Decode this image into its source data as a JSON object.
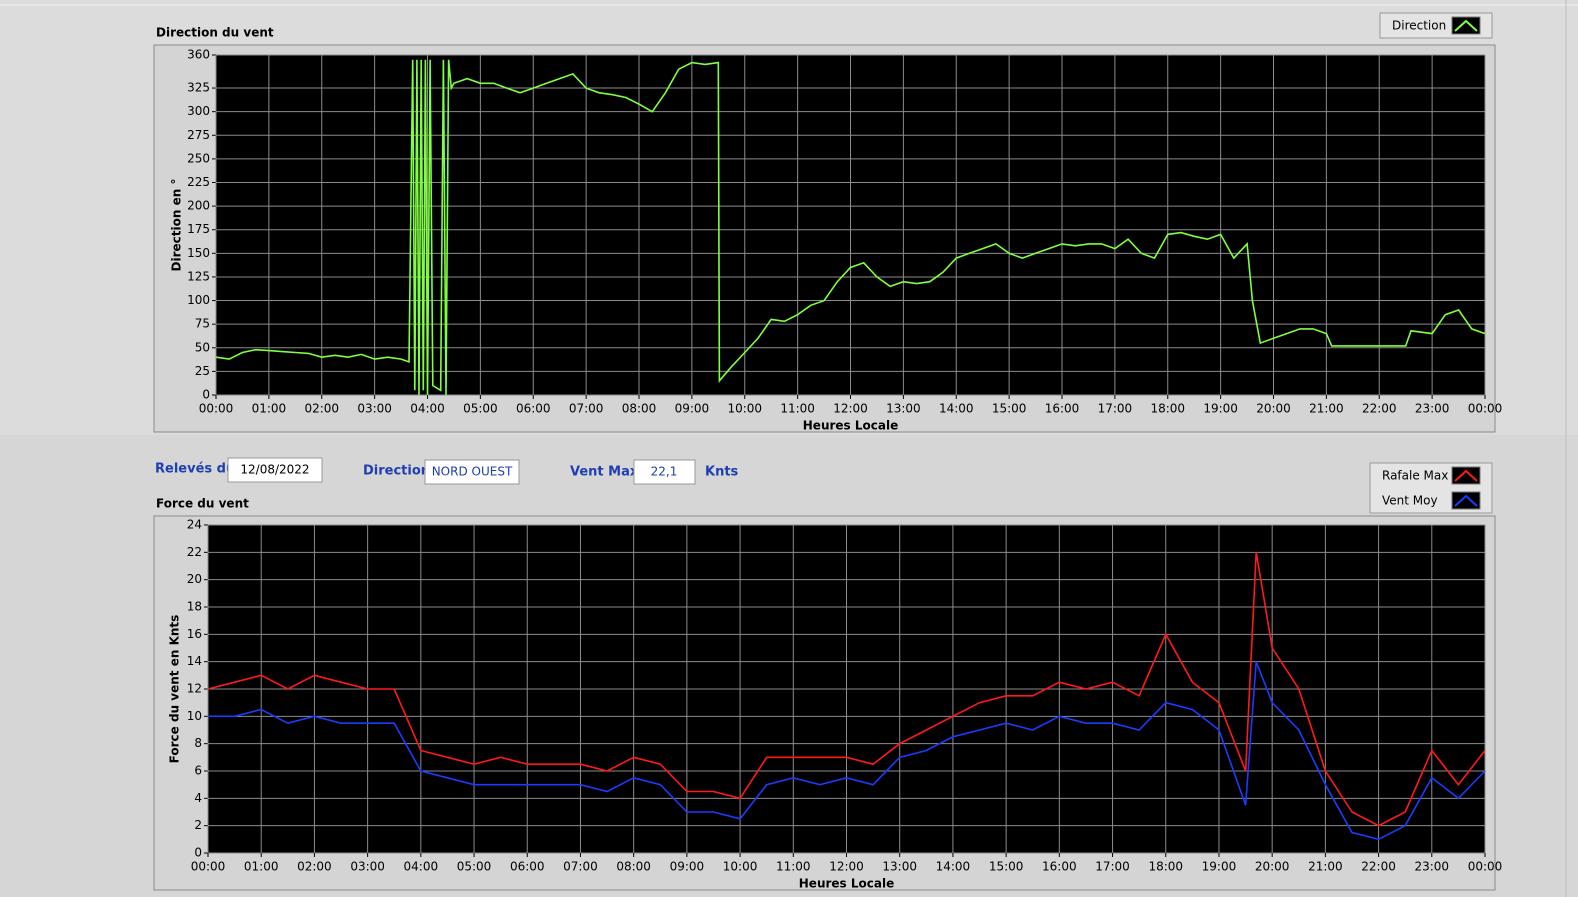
{
  "chart_data": [
    {
      "type": "line",
      "title": "Direction du vent",
      "ylabel": "Direction en °",
      "xlabel": "Heures Locale",
      "x": [
        0,
        0.25,
        0.5,
        0.75,
        1,
        1.25,
        1.5,
        1.75,
        2,
        2.25,
        2.5,
        2.75,
        3,
        3.25,
        3.5,
        3.65,
        3.72,
        3.76,
        3.8,
        3.84,
        3.88,
        3.92,
        3.96,
        4,
        4.05,
        4.1,
        4.25,
        4.3,
        4.35,
        4.4,
        4.45,
        4.5,
        4.75,
        5,
        5.25,
        5.5,
        5.75,
        6,
        6.25,
        6.5,
        6.75,
        7,
        7.25,
        7.5,
        7.75,
        8,
        8.25,
        8.5,
        8.75,
        9,
        9.25,
        9.5,
        9.52,
        9.75,
        10,
        10.25,
        10.5,
        10.75,
        11,
        11.25,
        11.5,
        11.75,
        12,
        12.25,
        12.5,
        12.75,
        13,
        13.25,
        13.5,
        13.75,
        14,
        14.25,
        14.5,
        14.75,
        15,
        15.25,
        15.5,
        15.75,
        16,
        16.25,
        16.5,
        16.75,
        17,
        17.25,
        17.5,
        17.75,
        18,
        18.25,
        18.5,
        18.75,
        19,
        19.25,
        19.5,
        19.6,
        19.75,
        20,
        20.25,
        20.5,
        20.75,
        21,
        21.1,
        21.5,
        22,
        22.5,
        22.6,
        23,
        23.25,
        23.5,
        23.75,
        24
      ],
      "series": [
        {
          "name": "Direction",
          "color": "#80ff40",
          "values": [
            40,
            38,
            45,
            48,
            47,
            46,
            45,
            44,
            40,
            42,
            40,
            43,
            38,
            40,
            38,
            35,
            355,
            5,
            355,
            0,
            355,
            5,
            355,
            0,
            355,
            10,
            5,
            355,
            0,
            355,
            325,
            330,
            335,
            330,
            330,
            325,
            320,
            325,
            330,
            335,
            340,
            325,
            320,
            318,
            315,
            308,
            300,
            320,
            345,
            352,
            350,
            352,
            15,
            30,
            45,
            60,
            80,
            78,
            85,
            95,
            100,
            120,
            135,
            140,
            125,
            115,
            120,
            118,
            120,
            130,
            145,
            150,
            155,
            160,
            150,
            145,
            150,
            155,
            160,
            158,
            160,
            160,
            155,
            165,
            150,
            145,
            170,
            172,
            168,
            165,
            170,
            145,
            160,
            100,
            55,
            60,
            65,
            70,
            70,
            65,
            52,
            52,
            52,
            52,
            68,
            65,
            85,
            90,
            70,
            65
          ]
        }
      ],
      "xlim": [
        0,
        24
      ],
      "xticks": [
        {
          "value": 0,
          "label": "00:00"
        },
        {
          "value": 1,
          "label": "01:00"
        },
        {
          "value": 2,
          "label": "02:00"
        },
        {
          "value": 3,
          "label": "03:00"
        },
        {
          "value": 4,
          "label": "04:00"
        },
        {
          "value": 5,
          "label": "05:00"
        },
        {
          "value": 6,
          "label": "06:00"
        },
        {
          "value": 7,
          "label": "07:00"
        },
        {
          "value": 8,
          "label": "08:00"
        },
        {
          "value": 9,
          "label": "09:00"
        },
        {
          "value": 10,
          "label": "10:00"
        },
        {
          "value": 11,
          "label": "11:00"
        },
        {
          "value": 12,
          "label": "12:00"
        },
        {
          "value": 13,
          "label": "13:00"
        },
        {
          "value": 14,
          "label": "14:00"
        },
        {
          "value": 15,
          "label": "15:00"
        },
        {
          "value": 16,
          "label": "16:00"
        },
        {
          "value": 17,
          "label": "17:00"
        },
        {
          "value": 18,
          "label": "18:00"
        },
        {
          "value": 19,
          "label": "19:00"
        },
        {
          "value": 20,
          "label": "20:00"
        },
        {
          "value": 21,
          "label": "21:00"
        },
        {
          "value": 22,
          "label": "22:00"
        },
        {
          "value": 23,
          "label": "23:00"
        },
        {
          "value": 24,
          "label": "00:00"
        }
      ],
      "ylim": [
        0,
        360
      ],
      "yticks": [
        0,
        25,
        50,
        75,
        100,
        125,
        150,
        175,
        200,
        225,
        250,
        275,
        300,
        325,
        360
      ],
      "grid": true,
      "legend": "top-right"
    },
    {
      "type": "line",
      "title": "Force du vent",
      "ylabel": "Force du vent en Knts",
      "xlabel": "Heures Locale",
      "x": [
        0,
        0.5,
        1,
        1.5,
        2,
        2.5,
        3,
        3.5,
        4,
        4.5,
        5,
        5.5,
        6,
        6.5,
        7,
        7.5,
        8,
        8.5,
        9,
        9.5,
        10,
        10.5,
        11,
        11.5,
        12,
        12.5,
        13,
        13.5,
        14,
        14.5,
        15,
        15.5,
        16,
        16.5,
        17,
        17.5,
        18,
        18.5,
        19,
        19.5,
        19.7,
        20,
        20.5,
        21,
        21.5,
        22,
        22.5,
        23,
        23.5,
        24
      ],
      "series": [
        {
          "name": "Rafale Max",
          "color": "#ff1a1a",
          "values": [
            12,
            12.5,
            13,
            12,
            13,
            12.5,
            12,
            12,
            7.5,
            7,
            6.5,
            7,
            6.5,
            6.5,
            6.5,
            6,
            7,
            6.5,
            4.5,
            4.5,
            4,
            7,
            7,
            7,
            7,
            6.5,
            8,
            9,
            10,
            11,
            11.5,
            11.5,
            12.5,
            12,
            12.5,
            11.5,
            16,
            12.5,
            11,
            6,
            22,
            15,
            12,
            6,
            3,
            2,
            3,
            7.5,
            5,
            7.5
          ]
        },
        {
          "name": "Vent Moy",
          "color": "#1a3cff",
          "values": [
            10,
            10,
            10.5,
            9.5,
            10,
            9.5,
            9.5,
            9.5,
            6,
            5.5,
            5,
            5,
            5,
            5,
            5,
            4.5,
            5.5,
            5,
            3,
            3,
            2.5,
            5,
            5.5,
            5,
            5.5,
            5,
            7,
            7.5,
            8.5,
            9,
            9.5,
            9,
            10,
            9.5,
            9.5,
            9,
            11,
            10.5,
            9,
            3.5,
            14,
            11,
            9,
            5,
            1.5,
            1,
            2,
            5.5,
            4,
            6
          ]
        }
      ],
      "xlim": [
        0,
        24
      ],
      "xticks": [
        {
          "value": 0,
          "label": "00:00"
        },
        {
          "value": 1,
          "label": "01:00"
        },
        {
          "value": 2,
          "label": "02:00"
        },
        {
          "value": 3,
          "label": "03:00"
        },
        {
          "value": 4,
          "label": "04:00"
        },
        {
          "value": 5,
          "label": "05:00"
        },
        {
          "value": 6,
          "label": "06:00"
        },
        {
          "value": 7,
          "label": "07:00"
        },
        {
          "value": 8,
          "label": "08:00"
        },
        {
          "value": 9,
          "label": "09:00"
        },
        {
          "value": 10,
          "label": "10:00"
        },
        {
          "value": 11,
          "label": "11:00"
        },
        {
          "value": 12,
          "label": "12:00"
        },
        {
          "value": 13,
          "label": "13:00"
        },
        {
          "value": 14,
          "label": "14:00"
        },
        {
          "value": 15,
          "label": "15:00"
        },
        {
          "value": 16,
          "label": "16:00"
        },
        {
          "value": 17,
          "label": "17:00"
        },
        {
          "value": 18,
          "label": "18:00"
        },
        {
          "value": 19,
          "label": "19:00"
        },
        {
          "value": 20,
          "label": "20:00"
        },
        {
          "value": 21,
          "label": "21:00"
        },
        {
          "value": 22,
          "label": "22:00"
        },
        {
          "value": 23,
          "label": "23:00"
        },
        {
          "value": 24,
          "label": "00:00"
        }
      ],
      "ylim": [
        0,
        24
      ],
      "yticks": [
        0,
        2,
        4,
        6,
        8,
        10,
        12,
        14,
        16,
        18,
        20,
        22,
        24
      ],
      "grid": true,
      "legend": "top-right"
    }
  ],
  "fields": {
    "date": {
      "label": "Relevés du",
      "value": "12/08/2022"
    },
    "direction": {
      "label": "Direction",
      "value": "NORD OUEST"
    },
    "vent_max": {
      "label": "Vent Max",
      "value": "22,1",
      "unit": "Knts"
    }
  }
}
